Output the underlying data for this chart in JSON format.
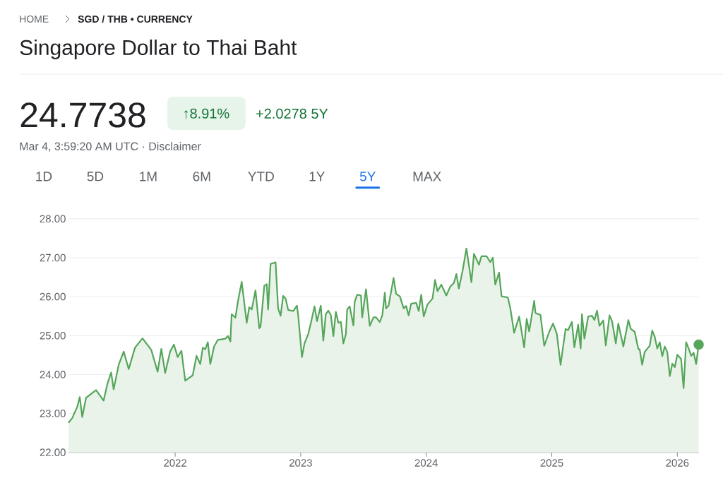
{
  "chart_data": {
    "type": "area",
    "title": "Singapore Dollar to Thai Baht",
    "annotations": [
      "HOME",
      "SGD / THB • CURRENCY",
      "24.7738",
      "↑8.91%",
      "+2.0278 5Y",
      "Mar 4, 3:59:20 AM UTC · Disclaimer",
      "1D",
      "5D",
      "1M",
      "6M",
      "YTD",
      "1Y",
      "5Y",
      "MAX"
    ],
    "series": [
      {
        "color": "#55a55a",
        "x": [
          2021.15,
          2021.18,
          2021.22,
          2021.24,
          2021.26,
          2021.29,
          2021.33,
          2021.37,
          2021.43,
          2021.46,
          2021.49,
          2021.51,
          2021.55,
          2021.59,
          2021.63,
          2021.68,
          2021.74,
          2021.81,
          2021.86,
          2021.89,
          2021.92,
          2021.96,
          2021.99,
          2022.02,
          2022.05,
          2022.08,
          2022.14,
          2022.17,
          2022.2,
          2022.22,
          2022.24,
          2022.26,
          2022.28,
          2022.31,
          2022.34,
          2022.4,
          2022.42,
          2022.44,
          2022.45,
          2022.48,
          2022.5,
          2022.53,
          2022.57,
          2022.59,
          2022.61,
          2022.64,
          2022.67,
          2022.68,
          2022.71,
          2022.73,
          2022.74,
          2022.76,
          2022.8,
          2022.82,
          2022.84,
          2022.86,
          2022.88,
          2022.9,
          2022.94,
          2022.97,
          2022.98,
          2023.01,
          2023.03,
          2023.06,
          2023.08,
          2023.11,
          2023.13,
          2023.16,
          2023.18,
          2023.2,
          2023.22,
          2023.24,
          2023.26,
          2023.28,
          2023.3,
          2023.32,
          2023.34,
          2023.36,
          2023.37,
          2023.39,
          2023.42,
          2023.43,
          2023.45,
          2023.48,
          2023.49,
          2023.52,
          2023.53,
          2023.55,
          2023.58,
          2023.6,
          2023.63,
          2023.65,
          2023.67,
          2023.68,
          2023.7,
          2023.74,
          2023.76,
          2023.79,
          2023.82,
          2023.84,
          2023.86,
          2023.88,
          2023.92,
          2023.94,
          2023.96,
          2023.98,
          2024.01,
          2024.05,
          2024.07,
          2024.09,
          2024.12,
          2024.16,
          2024.19,
          2024.22,
          2024.24,
          2024.26,
          2024.29,
          2024.32,
          2024.36,
          2024.38,
          2024.42,
          2024.44,
          2024.48,
          2024.51,
          2024.53,
          2024.55,
          2024.58,
          2024.6,
          2024.65,
          2024.67,
          2024.7,
          2024.74,
          2024.78,
          2024.8,
          2024.82,
          2024.86,
          2024.87,
          2024.91,
          2024.94,
          2024.98,
          2025.01,
          2025.04,
          2025.07,
          2025.11,
          2025.13,
          2025.16,
          2025.18,
          2025.21,
          2025.23,
          2025.24,
          2025.26,
          2025.29,
          2025.32,
          2025.34,
          2025.36,
          2025.38,
          2025.41,
          2025.43,
          2025.46,
          2025.48,
          2025.51,
          2025.53,
          2025.57,
          2025.61,
          2025.63,
          2025.66,
          2025.69,
          2025.7,
          2025.72,
          2025.74,
          2025.78,
          2025.8,
          2025.82,
          2025.84,
          2025.86,
          2025.88,
          2025.9,
          2025.92,
          2025.94,
          2025.96,
          2025.98,
          2026.0,
          2026.03,
          2026.05,
          2026.07,
          2026.09,
          2026.11,
          2026.13,
          2026.15,
          2026.17
        ],
        "values": [
          22.76,
          22.88,
          23.17,
          23.42,
          22.91,
          23.4,
          23.5,
          23.6,
          23.33,
          23.76,
          24.05,
          23.62,
          24.25,
          24.59,
          24.14,
          24.69,
          24.93,
          24.63,
          24.07,
          24.66,
          24.04,
          24.59,
          24.77,
          24.45,
          24.61,
          23.84,
          23.98,
          24.48,
          24.27,
          24.69,
          24.65,
          24.83,
          24.27,
          24.72,
          24.89,
          24.92,
          24.99,
          24.85,
          25.55,
          25.46,
          25.88,
          26.38,
          25.33,
          25.73,
          25.67,
          26.16,
          25.19,
          25.23,
          26.28,
          26.32,
          25.67,
          26.84,
          26.88,
          25.7,
          25.51,
          26.02,
          25.95,
          25.66,
          25.63,
          25.77,
          25.52,
          24.45,
          24.8,
          25.04,
          25.31,
          25.75,
          25.37,
          25.77,
          24.87,
          25.55,
          25.64,
          25.53,
          24.99,
          25.61,
          25.33,
          25.35,
          24.8,
          25.04,
          25.67,
          25.75,
          25.26,
          25.87,
          26.05,
          26.03,
          25.47,
          26.19,
          25.89,
          25.25,
          25.47,
          25.47,
          25.35,
          25.52,
          26.1,
          25.7,
          25.77,
          26.48,
          26.07,
          26.01,
          25.7,
          25.76,
          25.52,
          25.82,
          25.84,
          25.63,
          26.05,
          25.49,
          25.8,
          25.95,
          26.43,
          26.14,
          26.31,
          26.03,
          26.25,
          26.35,
          26.58,
          26.21,
          26.67,
          27.24,
          26.37,
          27.1,
          26.82,
          27.04,
          27.04,
          26.89,
          27.0,
          26.31,
          26.62,
          26.01,
          25.98,
          25.7,
          25.07,
          25.49,
          24.7,
          25.43,
          25.11,
          25.89,
          25.58,
          25.53,
          24.74,
          25.1,
          25.31,
          25.05,
          24.25,
          25.17,
          25.14,
          25.35,
          24.7,
          25.28,
          24.67,
          25.55,
          24.92,
          25.49,
          25.51,
          25.4,
          25.64,
          25.25,
          25.39,
          24.75,
          25.52,
          25.37,
          24.8,
          25.31,
          24.72,
          25.4,
          25.17,
          25.1,
          24.65,
          24.65,
          24.25,
          24.58,
          24.74,
          25.13,
          24.97,
          24.67,
          24.83,
          24.47,
          24.72,
          24.58,
          23.96,
          24.28,
          24.19,
          24.51,
          24.4,
          23.65,
          24.83,
          24.67,
          24.48,
          24.56,
          24.27,
          24.77
        ]
      },
      {
        "type": "scatter",
        "marker": "circle",
        "color": "#55a55a",
        "x": [
          2026.17
        ],
        "values": [
          24.77
        ]
      }
    ],
    "xlim": [
      2021.15,
      2026.17
    ],
    "ylim": [
      22,
      28
    ],
    "xticks": [
      2022,
      2023,
      2024,
      2025,
      2026
    ],
    "yticks": [
      {
        "value": 22,
        "label": "22.00"
      },
      {
        "value": 23,
        "label": "23.00"
      },
      {
        "value": 24,
        "label": "24.00"
      },
      {
        "value": 25,
        "label": "25.00"
      },
      {
        "value": 26,
        "label": "26.00"
      },
      {
        "value": 27,
        "label": "27.00"
      },
      {
        "value": 28,
        "label": "28.00"
      }
    ],
    "grid": "y"
  }
}
